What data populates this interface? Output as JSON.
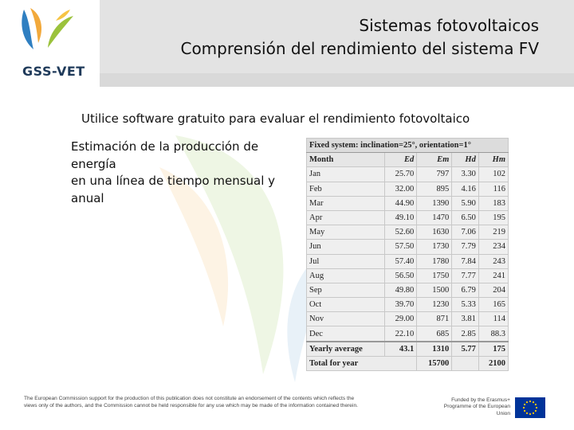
{
  "header": {
    "logo_text": "GSS-VET",
    "title_line1": "Sistemas fotovoltaicos",
    "title_line2": "Comprensión del rendimiento del sistema FV"
  },
  "main": {
    "subtitle": "Utilice software gratuito para evaluar el rendimiento fotovoltaico",
    "description_lines": [
      "Estimación de la producción de",
      "energía",
      "en una línea de tiempo mensual y",
      "anual"
    ]
  },
  "table": {
    "title": "Fixed system: inclination=25°, orientation=1°",
    "columns": [
      "Month",
      "Ed",
      "Em",
      "Hd",
      "Hm"
    ],
    "rows": [
      [
        "Jan",
        "25.70",
        "797",
        "3.30",
        "102"
      ],
      [
        "Feb",
        "32.00",
        "895",
        "4.16",
        "116"
      ],
      [
        "Mar",
        "44.90",
        "1390",
        "5.90",
        "183"
      ],
      [
        "Apr",
        "49.10",
        "1470",
        "6.50",
        "195"
      ],
      [
        "May",
        "52.60",
        "1630",
        "7.06",
        "219"
      ],
      [
        "Jun",
        "57.50",
        "1730",
        "7.79",
        "234"
      ],
      [
        "Jul",
        "57.40",
        "1780",
        "7.84",
        "243"
      ],
      [
        "Aug",
        "56.50",
        "1750",
        "7.77",
        "241"
      ],
      [
        "Sep",
        "49.80",
        "1500",
        "6.79",
        "204"
      ],
      [
        "Oct",
        "39.70",
        "1230",
        "5.33",
        "165"
      ],
      [
        "Nov",
        "29.00",
        "871",
        "3.81",
        "114"
      ],
      [
        "Dec",
        "22.10",
        "685",
        "2.85",
        "88.3"
      ]
    ],
    "yearly_average": [
      "Yearly average",
      "43.1",
      "1310",
      "5.77",
      "175"
    ],
    "total": [
      "Total for year",
      "15700",
      "2100"
    ]
  },
  "footer": {
    "disclaimer": "The European Commission support for the production of this publication does not constitute an endorsement of the contents which reflects the views only of the authors, and the Commission cannot be held responsible for any use which may be made of the information contained therein.",
    "eu_funding": "Funded by the Erasmus+ Programme of the European Union"
  }
}
